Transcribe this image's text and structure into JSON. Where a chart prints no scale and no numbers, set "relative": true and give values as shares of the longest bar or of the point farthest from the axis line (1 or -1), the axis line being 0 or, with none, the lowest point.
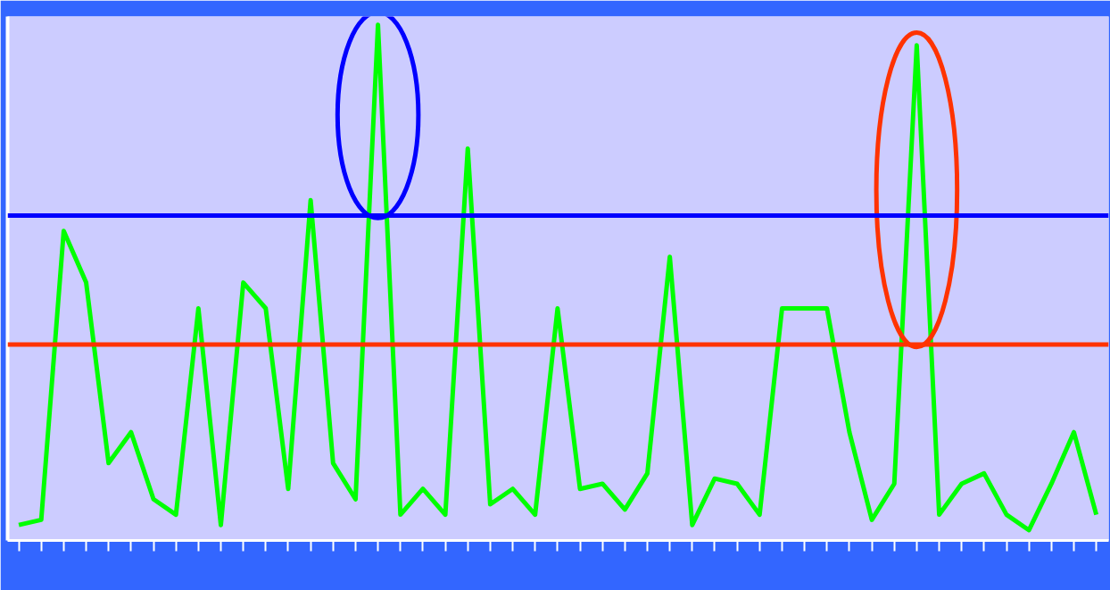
{
  "chart_data": {
    "type": "line",
    "relative": true,
    "categories": [
      null,
      null,
      null,
      null,
      null,
      null,
      null,
      null,
      null,
      null,
      null,
      null,
      null,
      null,
      null,
      null,
      null,
      null,
      null,
      null,
      null,
      null,
      null,
      null,
      null,
      null,
      null,
      null,
      null,
      null,
      null,
      null,
      null,
      null,
      null,
      null,
      null,
      null,
      null,
      null,
      null,
      null,
      null,
      null,
      null,
      null,
      null,
      null,
      null
    ],
    "series": [
      {
        "color": "#00ff00",
        "values": [
          0.03,
          0.04,
          0.6,
          0.5,
          0.15,
          0.21,
          0.08,
          0.05,
          0.45,
          0.03,
          0.5,
          0.45,
          0.1,
          0.66,
          0.15,
          0.08,
          1.0,
          0.05,
          0.1,
          0.05,
          0.76,
          0.07,
          0.1,
          0.05,
          0.45,
          0.1,
          0.11,
          0.06,
          0.13,
          0.55,
          0.03,
          0.12,
          0.11,
          0.05,
          0.45,
          0.45,
          0.45,
          0.21,
          0.04,
          0.11,
          0.96,
          0.05,
          0.11,
          0.13,
          0.05,
          0.02,
          0.11,
          0.21,
          0.05
        ]
      }
    ],
    "ref_lines": [
      {
        "axis": "y",
        "value": 0.63,
        "color": "#0000ff"
      },
      {
        "axis": "y",
        "value": 0.38,
        "color": "#ff3300"
      }
    ],
    "grid": false,
    "marker": "none",
    "line_style": "solid"
  }
}
